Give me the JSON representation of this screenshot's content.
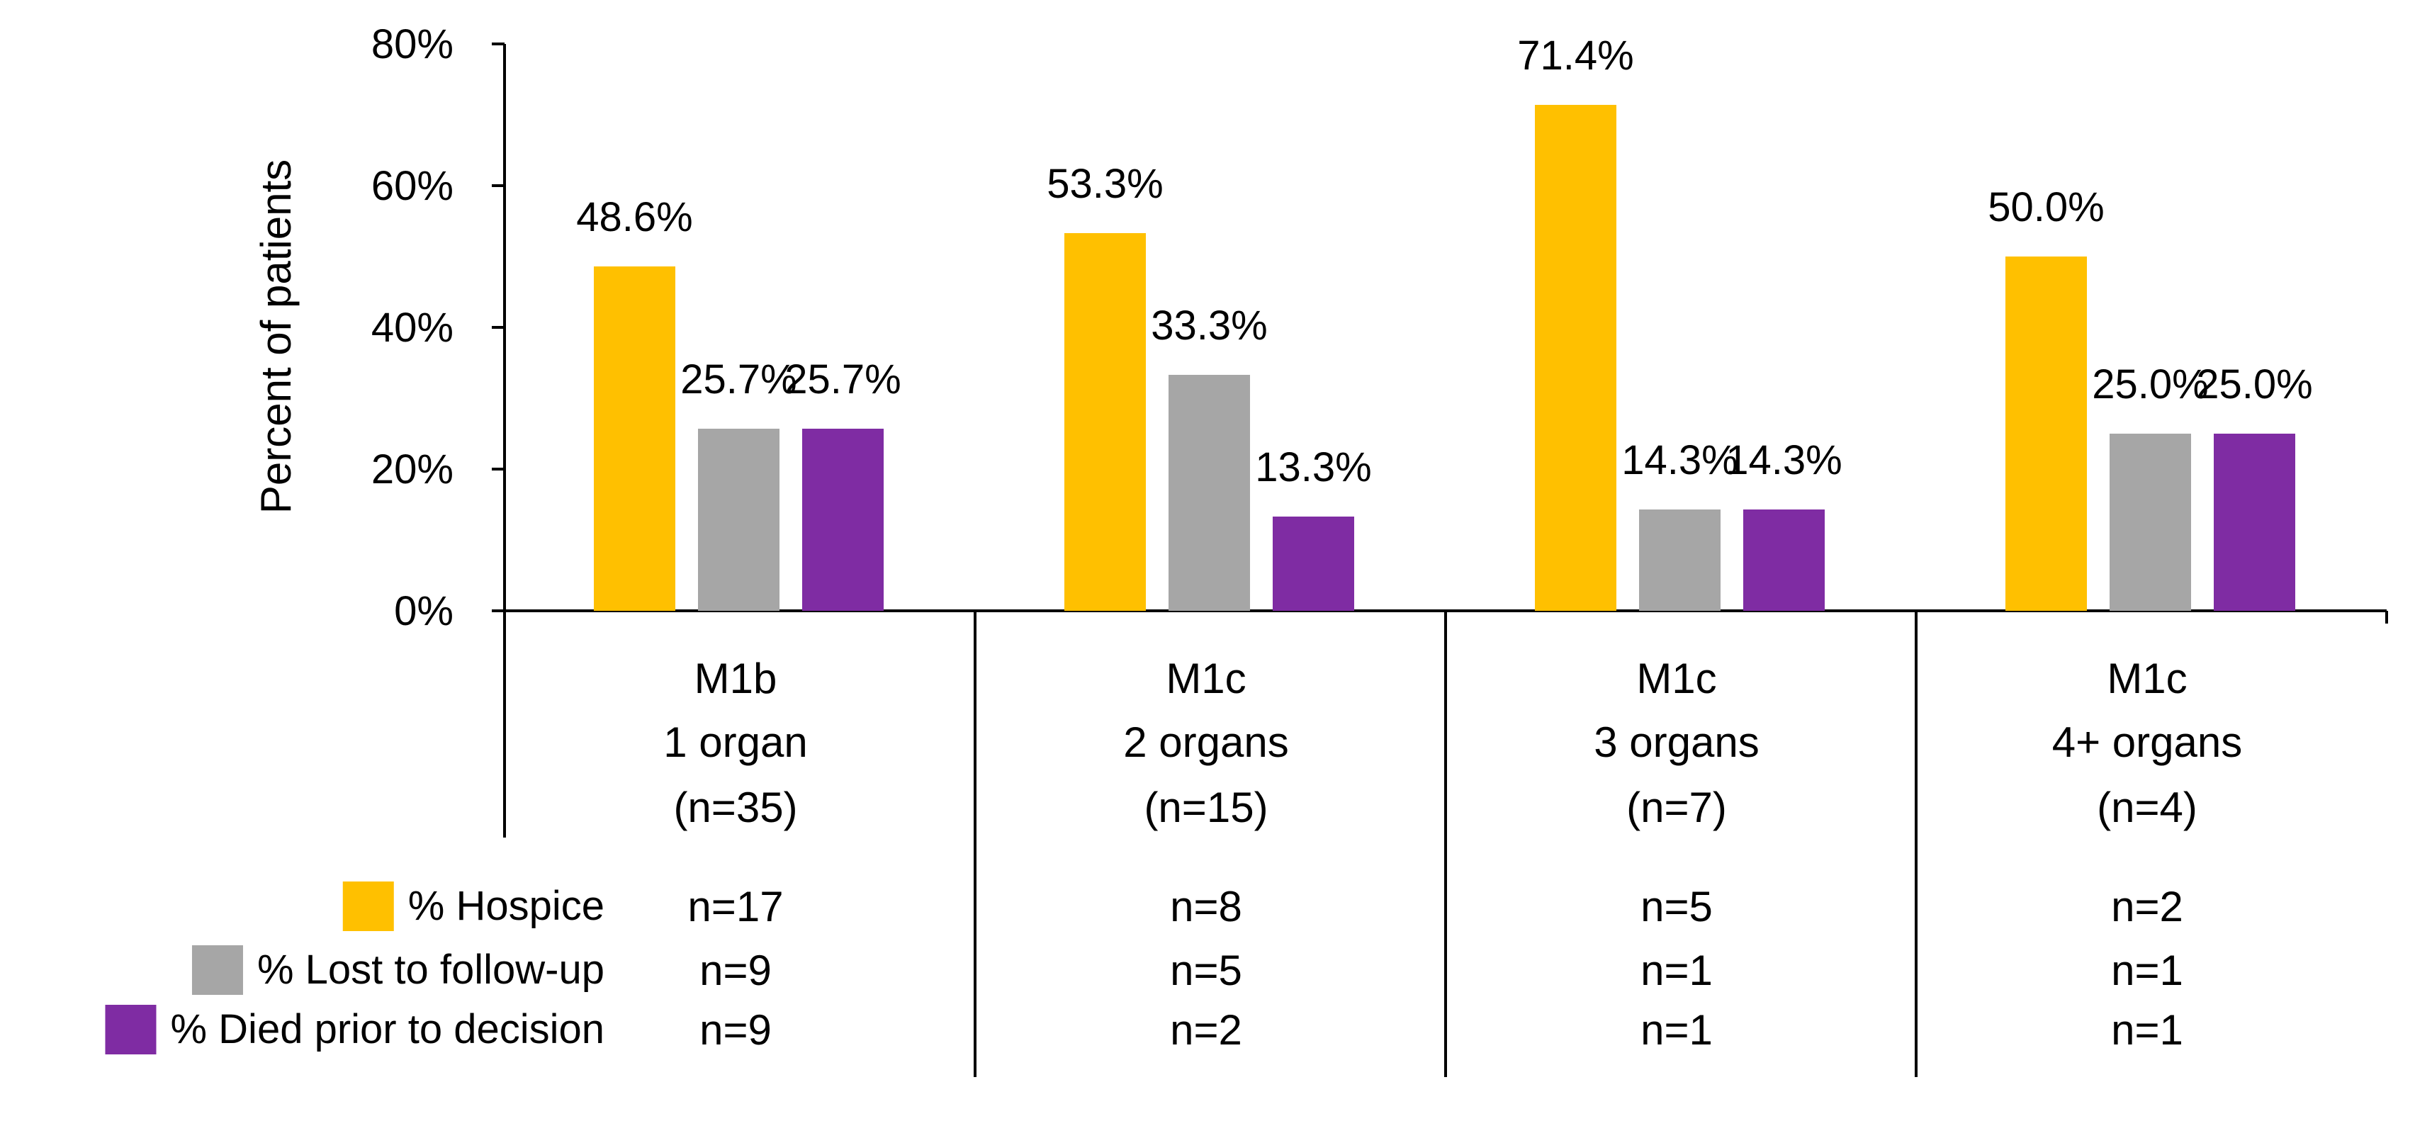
{
  "chart_data": {
    "type": "bar",
    "ylabel": "Percent of patients",
    "ylim": [
      0,
      80
    ],
    "yticks": [
      0,
      20,
      40,
      60,
      80
    ],
    "ytick_labels": [
      "0%",
      "20%",
      "40%",
      "60%",
      "80%"
    ],
    "grid": false,
    "categories": [
      {
        "line1": "M1b",
        "line2": "1 organ",
        "line3": "(n=35)"
      },
      {
        "line1": "M1c",
        "line2": "2 organs",
        "line3": "(n=15)"
      },
      {
        "line1": "M1c",
        "line2": "3 organs",
        "line3": "(n=7)"
      },
      {
        "line1": "M1c",
        "line2": "4+ organs",
        "line3": "(n=4)"
      }
    ],
    "series": [
      {
        "name": "% Hospice",
        "color": "#FFC000",
        "values": [
          48.6,
          53.3,
          71.4,
          50.0
        ],
        "labels": [
          "48.6%",
          "53.3%",
          "71.4%",
          "50.0%"
        ],
        "counts": [
          "n=17",
          "n=8",
          "n=5",
          "n=2"
        ]
      },
      {
        "name": "% Lost to follow-up",
        "color": "#A6A6A6",
        "values": [
          25.7,
          33.3,
          14.3,
          25.0
        ],
        "labels": [
          "25.7%",
          "33.3%",
          "14.3%",
          "25.0%"
        ],
        "counts": [
          "n=9",
          "n=5",
          "n=1",
          "n=1"
        ]
      },
      {
        "name": "% Died prior to decision",
        "color": "#7F2CA3",
        "values": [
          25.7,
          13.3,
          14.3,
          25.0
        ],
        "labels": [
          "25.7%",
          "13.3%",
          "14.3%",
          "25.0%"
        ],
        "counts": [
          "n=9",
          "n=2",
          "n=1",
          "n=1"
        ]
      }
    ]
  }
}
